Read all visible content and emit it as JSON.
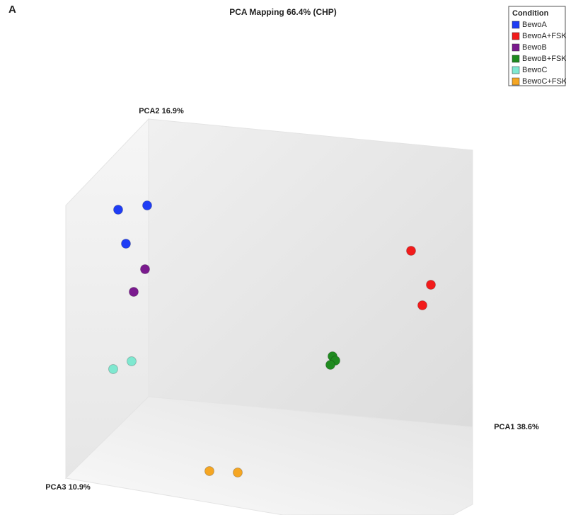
{
  "chart_data": {
    "type": "scatter3d",
    "panel_label": "A",
    "title": "PCA Mapping 66.4% (CHP)",
    "x_label": "PCA1 38.6%",
    "y_label": "PCA2 16.9%",
    "z_label": "PCA3 10.9%",
    "legend_title": "Condition",
    "legend": "upper right",
    "series": [
      {
        "name": "BewoA",
        "color": "#1f3df5"
      },
      {
        "name": "BewoA+FSK",
        "color": "#f21b1b"
      },
      {
        "name": "BewoB",
        "color": "#7a1a8e"
      },
      {
        "name": "BewoB+FSK",
        "color": "#1f8a1f"
      },
      {
        "name": "BewoC",
        "color": "#7fe8d0"
      },
      {
        "name": "BewoC+FSK",
        "color": "#f5a623"
      }
    ]
  }
}
